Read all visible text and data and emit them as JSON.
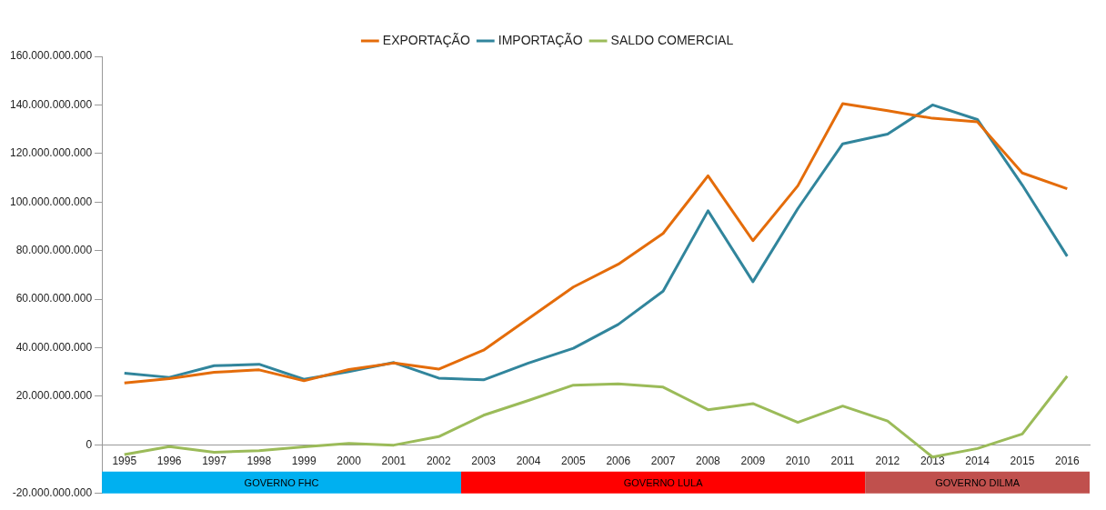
{
  "chart_data": {
    "type": "line",
    "categories": [
      "1995",
      "1996",
      "1997",
      "1998",
      "1999",
      "2000",
      "2001",
      "2002",
      "2003",
      "2004",
      "2005",
      "2006",
      "2007",
      "2008",
      "2009",
      "2010",
      "2011",
      "2012",
      "2013",
      "2014",
      "2015",
      "2016"
    ],
    "series": [
      {
        "name": "EXPORTAÇÃO",
        "color": "#e46c0a",
        "values": [
          25500000000,
          27300000000,
          29900000000,
          30900000000,
          26400000000,
          31000000000,
          33700000000,
          31200000000,
          39000000000,
          52000000000,
          65000000000,
          74400000000,
          87100000000,
          110800000000,
          84100000000,
          106700000000,
          140500000000,
          137600000000,
          134500000000,
          133000000000,
          112000000000,
          105500000000
        ]
      },
      {
        "name": "IMPORTAÇÃO",
        "color": "#31859c",
        "values": [
          29500000000,
          27800000000,
          32600000000,
          33200000000,
          27000000000,
          30200000000,
          33900000000,
          27500000000,
          26800000000,
          33700000000,
          39800000000,
          49600000000,
          63300000000,
          96400000000,
          67200000000,
          97300000000,
          124000000000,
          128000000000,
          140000000000,
          134000000000,
          107000000000,
          77700000000
        ]
      },
      {
        "name": "SALDO COMERCIAL",
        "color": "#9bbb59",
        "values": [
          -4000000000,
          -700000000,
          -3000000000,
          -2400000000,
          -800000000,
          600000000,
          -100000000,
          3400000000,
          12200000000,
          18300000000,
          24600000000,
          25100000000,
          23800000000,
          14500000000,
          17000000000,
          9300000000,
          16000000000,
          9800000000,
          -5000000000,
          -1500000000,
          4500000000,
          28300000000
        ]
      }
    ],
    "ylim": [
      -20000000000,
      160000000000
    ],
    "yticks": [
      {
        "value": -20000000000,
        "label": "-20.000.000.000"
      },
      {
        "value": 0,
        "label": "0"
      },
      {
        "value": 20000000000,
        "label": "20.000.000.000"
      },
      {
        "value": 40000000000,
        "label": "40.000.000.000"
      },
      {
        "value": 60000000000,
        "label": "60.000.000.000"
      },
      {
        "value": 80000000000,
        "label": "80.000.000.000"
      },
      {
        "value": 100000000000,
        "label": "100.000.000.000"
      },
      {
        "value": 120000000000,
        "label": "120.000.000.000"
      },
      {
        "value": 140000000000,
        "label": "140.000.000.000"
      },
      {
        "value": 160000000000,
        "label": "160.000.000.000"
      }
    ],
    "bands": [
      {
        "axis": "x",
        "from": "1995",
        "to": "2002",
        "label": "GOVERNO FHC",
        "color": "#00b0f0"
      },
      {
        "axis": "x",
        "from": "2003",
        "to": "2011",
        "label": "GOVERNO LULA",
        "color": "#ff0000"
      },
      {
        "axis": "x",
        "from": "2012",
        "to": "2016",
        "label": "GOVERNO DILMA",
        "color": "#c0504d"
      }
    ],
    "legend": "top",
    "grid": false,
    "marker": "none",
    "line_style": "solid"
  }
}
